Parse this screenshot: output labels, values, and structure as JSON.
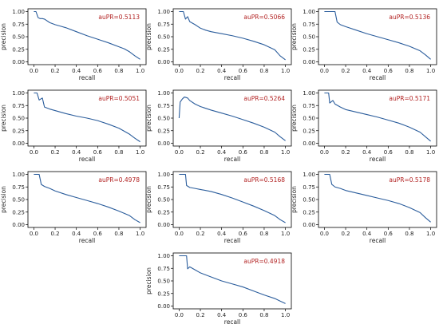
{
  "chart_data": [
    {
      "type": "line",
      "xlabel": "recall",
      "ylabel": "precision",
      "xlim": [
        0,
        1
      ],
      "ylim": [
        0,
        1
      ],
      "xticks": [
        "0.0",
        "0.2",
        "0.4",
        "0.6",
        "0.8",
        "1.0"
      ],
      "yticks": [
        "0.00",
        "0.25",
        "0.50",
        "0.75",
        "1.00"
      ],
      "annotation": "auPR=0.5113",
      "series": [
        {
          "x": [
            0.0,
            0.02,
            0.04,
            0.06,
            0.08,
            0.1,
            0.15,
            0.2,
            0.25,
            0.3,
            0.4,
            0.5,
            0.6,
            0.7,
            0.8,
            0.85,
            0.9,
            0.95,
            1.0
          ],
          "y": [
            1.0,
            1.0,
            0.88,
            0.86,
            0.86,
            0.85,
            0.78,
            0.74,
            0.71,
            0.68,
            0.6,
            0.52,
            0.45,
            0.38,
            0.3,
            0.26,
            0.2,
            0.12,
            0.05
          ]
        }
      ]
    },
    {
      "type": "line",
      "xlabel": "recall",
      "ylabel": "precision",
      "xlim": [
        0,
        1
      ],
      "ylim": [
        0,
        1
      ],
      "xticks": [
        "0.0",
        "0.2",
        "0.4",
        "0.6",
        "0.8",
        "1.0"
      ],
      "yticks": [
        "0.00",
        "0.25",
        "0.50",
        "0.75",
        "1.00"
      ],
      "annotation": "auPR=0.5066",
      "series": [
        {
          "x": [
            0.0,
            0.04,
            0.06,
            0.08,
            0.1,
            0.15,
            0.2,
            0.25,
            0.3,
            0.4,
            0.5,
            0.6,
            0.7,
            0.8,
            0.9,
            0.95,
            1.0
          ],
          "y": [
            1.0,
            1.0,
            0.85,
            0.9,
            0.8,
            0.74,
            0.67,
            0.63,
            0.6,
            0.56,
            0.52,
            0.47,
            0.41,
            0.34,
            0.24,
            0.12,
            0.04
          ]
        }
      ]
    },
    {
      "type": "line",
      "xlabel": "recall",
      "ylabel": "precision",
      "xlim": [
        0,
        1
      ],
      "ylim": [
        0,
        1
      ],
      "xticks": [
        "0.0",
        "0.2",
        "0.4",
        "0.6",
        "0.8",
        "1.0"
      ],
      "yticks": [
        "0.00",
        "0.25",
        "0.50",
        "0.75",
        "1.00"
      ],
      "annotation": "auPR=0.5136",
      "series": [
        {
          "x": [
            0.0,
            0.1,
            0.12,
            0.15,
            0.2,
            0.3,
            0.4,
            0.5,
            0.6,
            0.7,
            0.8,
            0.9,
            0.95,
            1.0
          ],
          "y": [
            1.0,
            1.0,
            0.79,
            0.74,
            0.7,
            0.63,
            0.56,
            0.5,
            0.44,
            0.38,
            0.31,
            0.22,
            0.14,
            0.05
          ]
        }
      ]
    },
    {
      "type": "line",
      "xlabel": "recall",
      "ylabel": "precision",
      "xlim": [
        0,
        1
      ],
      "ylim": [
        0,
        1
      ],
      "xticks": [
        "0.0",
        "0.2",
        "0.4",
        "0.6",
        "0.8",
        "1.0"
      ],
      "yticks": [
        "0.00",
        "0.25",
        "0.50",
        "0.75",
        "1.00"
      ],
      "annotation": "auPR=0.5051",
      "series": [
        {
          "x": [
            0.0,
            0.03,
            0.05,
            0.08,
            0.1,
            0.15,
            0.2,
            0.3,
            0.4,
            0.5,
            0.6,
            0.7,
            0.8,
            0.85,
            0.9,
            0.95,
            1.0
          ],
          "y": [
            1.0,
            1.0,
            0.86,
            0.9,
            0.72,
            0.68,
            0.65,
            0.59,
            0.54,
            0.5,
            0.45,
            0.38,
            0.3,
            0.24,
            0.18,
            0.1,
            0.03
          ]
        }
      ]
    },
    {
      "type": "line",
      "xlabel": "recall",
      "ylabel": "precision",
      "xlim": [
        0,
        1
      ],
      "ylim": [
        0,
        1
      ],
      "xticks": [
        "0.0",
        "0.2",
        "0.4",
        "0.6",
        "0.8",
        "1.0"
      ],
      "yticks": [
        "0.00",
        "0.25",
        "0.50",
        "0.75",
        "1.00"
      ],
      "annotation": "auPR=0.5264",
      "series": [
        {
          "x": [
            0.0,
            0.01,
            0.03,
            0.05,
            0.08,
            0.1,
            0.15,
            0.2,
            0.3,
            0.4,
            0.5,
            0.6,
            0.7,
            0.8,
            0.9,
            0.95,
            1.0
          ],
          "y": [
            0.5,
            0.82,
            0.88,
            0.92,
            0.9,
            0.85,
            0.78,
            0.73,
            0.66,
            0.6,
            0.54,
            0.47,
            0.4,
            0.32,
            0.22,
            0.13,
            0.05
          ]
        }
      ]
    },
    {
      "type": "line",
      "xlabel": "recall",
      "ylabel": "precision",
      "xlim": [
        0,
        1
      ],
      "ylim": [
        0,
        1
      ],
      "xticks": [
        "0.0",
        "0.2",
        "0.4",
        "0.6",
        "0.8",
        "1.0"
      ],
      "yticks": [
        "0.00",
        "0.25",
        "0.50",
        "0.75",
        "1.00"
      ],
      "annotation": "auPR=0.5171",
      "series": [
        {
          "x": [
            0.0,
            0.04,
            0.05,
            0.08,
            0.1,
            0.15,
            0.2,
            0.3,
            0.4,
            0.5,
            0.6,
            0.7,
            0.8,
            0.9,
            0.95,
            1.0
          ],
          "y": [
            1.0,
            1.0,
            0.8,
            0.85,
            0.78,
            0.72,
            0.67,
            0.62,
            0.57,
            0.52,
            0.46,
            0.4,
            0.32,
            0.22,
            0.13,
            0.04
          ]
        }
      ]
    },
    {
      "type": "line",
      "xlabel": "recall",
      "ylabel": "precision",
      "xlim": [
        0,
        1
      ],
      "ylim": [
        0,
        1
      ],
      "xticks": [
        "0.0",
        "0.2",
        "0.4",
        "0.6",
        "0.8",
        "1.0"
      ],
      "yticks": [
        "0.00",
        "0.25",
        "0.50",
        "0.75",
        "1.00"
      ],
      "annotation": "auPR=0.4978",
      "series": [
        {
          "x": [
            0.0,
            0.05,
            0.07,
            0.1,
            0.15,
            0.2,
            0.3,
            0.4,
            0.5,
            0.6,
            0.7,
            0.8,
            0.9,
            0.95,
            1.0
          ],
          "y": [
            1.0,
            1.0,
            0.8,
            0.76,
            0.72,
            0.67,
            0.6,
            0.54,
            0.48,
            0.42,
            0.35,
            0.27,
            0.18,
            0.1,
            0.04
          ]
        }
      ]
    },
    {
      "type": "line",
      "xlabel": "recall",
      "ylabel": "precision",
      "xlim": [
        0,
        1
      ],
      "ylim": [
        0,
        1
      ],
      "xticks": [
        "0.0",
        "0.2",
        "0.4",
        "0.6",
        "0.8",
        "1.0"
      ],
      "yticks": [
        "0.00",
        "0.25",
        "0.50",
        "0.75",
        "1.00"
      ],
      "annotation": "auPR=0.5168",
      "series": [
        {
          "x": [
            0.0,
            0.06,
            0.07,
            0.1,
            0.15,
            0.2,
            0.3,
            0.4,
            0.5,
            0.6,
            0.7,
            0.8,
            0.9,
            0.95,
            1.0
          ],
          "y": [
            1.0,
            1.0,
            0.78,
            0.74,
            0.72,
            0.7,
            0.66,
            0.6,
            0.53,
            0.45,
            0.37,
            0.28,
            0.18,
            0.1,
            0.04
          ]
        }
      ]
    },
    {
      "type": "line",
      "xlabel": "recall",
      "ylabel": "precision",
      "xlim": [
        0,
        1
      ],
      "ylim": [
        0,
        1
      ],
      "xticks": [
        "0.0",
        "0.2",
        "0.4",
        "0.6",
        "0.8",
        "1.0"
      ],
      "yticks": [
        "0.00",
        "0.25",
        "0.50",
        "0.75",
        "1.00"
      ],
      "annotation": "auPR=0.5178",
      "series": [
        {
          "x": [
            0.0,
            0.05,
            0.07,
            0.1,
            0.15,
            0.2,
            0.3,
            0.4,
            0.5,
            0.6,
            0.7,
            0.8,
            0.9,
            0.95,
            1.0
          ],
          "y": [
            1.0,
            1.0,
            0.8,
            0.75,
            0.72,
            0.68,
            0.63,
            0.58,
            0.53,
            0.48,
            0.42,
            0.34,
            0.24,
            0.14,
            0.05
          ]
        }
      ]
    },
    {
      "type": "line",
      "xlabel": "recall",
      "ylabel": "precision",
      "xlim": [
        0,
        1
      ],
      "ylim": [
        0,
        1
      ],
      "xticks": [
        "0.0",
        "0.2",
        "0.4",
        "0.6",
        "0.8",
        "1.0"
      ],
      "yticks": [
        "0.00",
        "0.25",
        "0.50",
        "0.75",
        "1.00"
      ],
      "annotation": "auPR=0.4918",
      "series": [
        {
          "x": [
            0.0,
            0.07,
            0.08,
            0.1,
            0.15,
            0.2,
            0.3,
            0.4,
            0.5,
            0.6,
            0.7,
            0.8,
            0.9,
            0.95,
            1.0
          ],
          "y": [
            1.0,
            1.0,
            0.74,
            0.78,
            0.72,
            0.66,
            0.58,
            0.5,
            0.44,
            0.38,
            0.3,
            0.22,
            0.15,
            0.1,
            0.05
          ]
        }
      ]
    }
  ],
  "colors": {
    "line": "#2b5d9c",
    "annotation": "#b22222",
    "axis": "#000000",
    "text": "#222222"
  }
}
